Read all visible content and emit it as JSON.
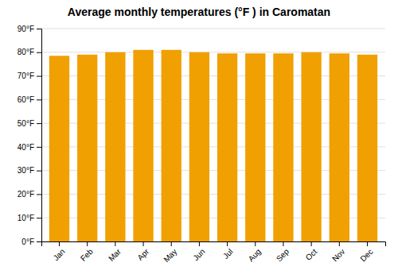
{
  "chart_data": {
    "type": "bar",
    "title": "Average monthly temperatures (°F ) in Caromatan",
    "categories": [
      "Jan",
      "Feb",
      "Mar",
      "Apr",
      "May",
      "Jun",
      "Jul",
      "Aug",
      "Sep",
      "Oct",
      "Nov",
      "Dec"
    ],
    "values": [
      78.5,
      79.0,
      80.0,
      81.0,
      81.0,
      80.0,
      79.5,
      79.5,
      79.5,
      80.0,
      79.5,
      79.0
    ],
    "color": "#F0A000",
    "ylim": [
      0,
      90
    ],
    "yticks": [
      {
        "value": 0,
        "label": "0°F"
      },
      {
        "value": 10,
        "label": "10°F"
      },
      {
        "value": 20,
        "label": "20°F"
      },
      {
        "value": 30,
        "label": "30°F"
      },
      {
        "value": 40,
        "label": "40°F"
      },
      {
        "value": 50,
        "label": "50°F"
      },
      {
        "value": 60,
        "label": "60°F"
      },
      {
        "value": 70,
        "label": "70°F"
      },
      {
        "value": 80,
        "label": "80°F"
      },
      {
        "value": 90,
        "label": "90°F"
      }
    ],
    "grid": true
  }
}
